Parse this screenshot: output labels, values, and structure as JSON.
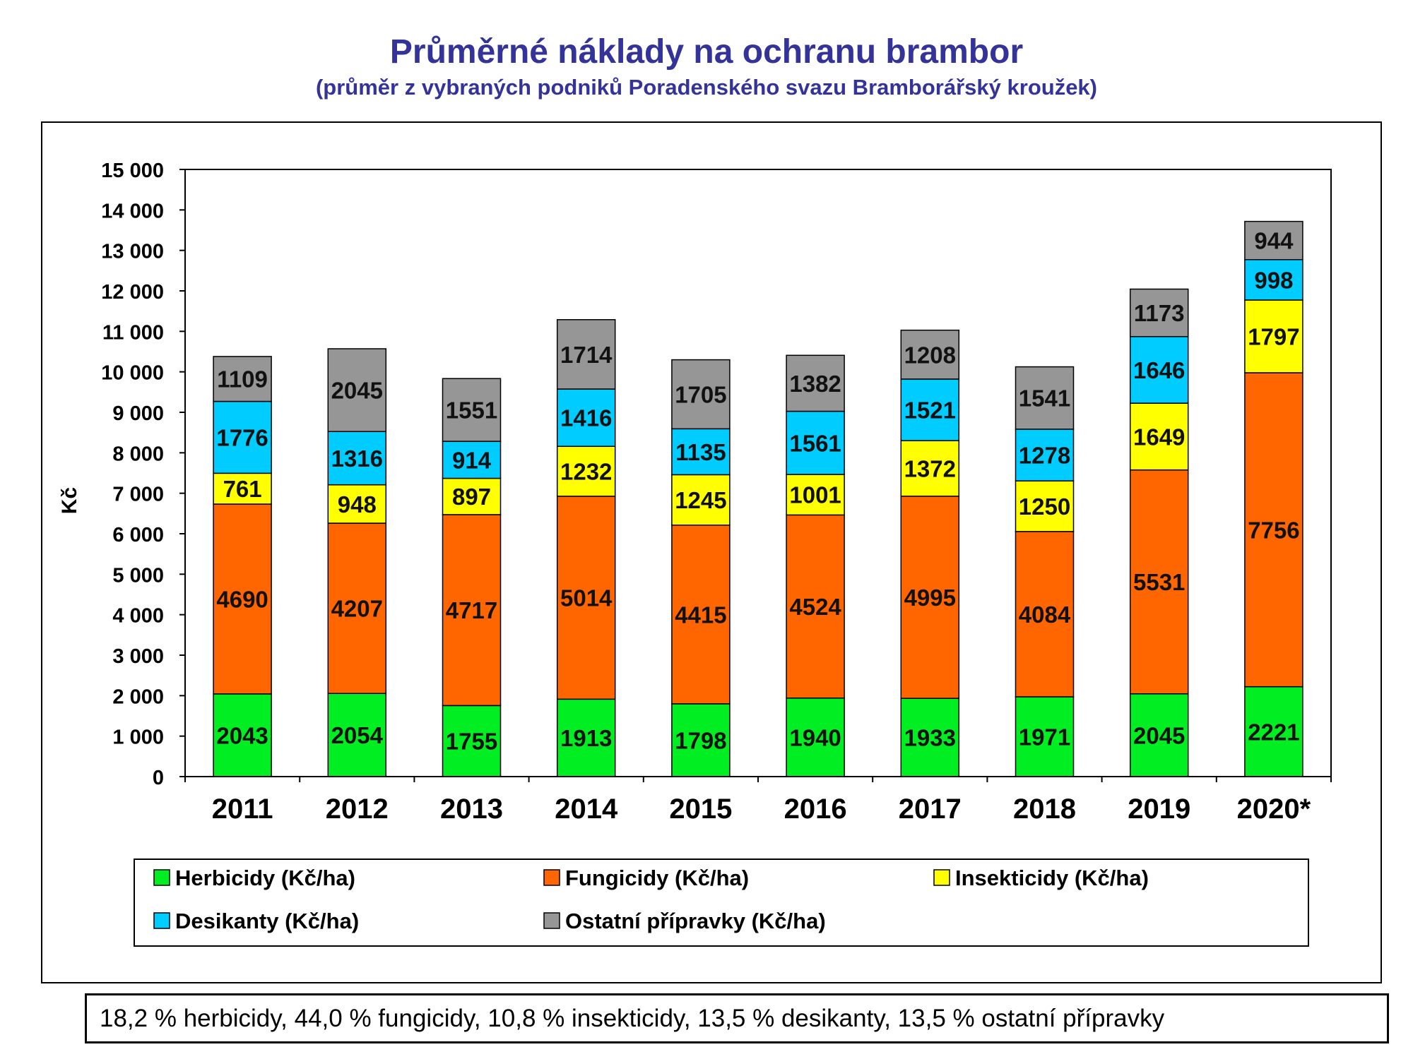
{
  "header": {
    "title": "Průměrné náklady na ochranu brambor",
    "subtitle": "(průměr z vybraných podniků Poradenského svazu Bramborářský kroužek)"
  },
  "summary": "18,2 % herbicidy, 44,0 % fungicidy, 10,8 % insekticidy, 13,5 % desikanty, 13,5 % ostatní přípravky",
  "chart_data": {
    "type": "bar",
    "stacked": true,
    "title": "",
    "xlabel": "",
    "ylabel": "Kč",
    "ylim": [
      0,
      15000
    ],
    "yticks": [
      0,
      1000,
      2000,
      3000,
      4000,
      5000,
      6000,
      7000,
      8000,
      9000,
      10000,
      11000,
      12000,
      13000,
      14000,
      15000
    ],
    "ytick_labels": [
      "0",
      "1 000",
      "2 000",
      "3 000",
      "4 000",
      "5 000",
      "6 000",
      "7 000",
      "8 000",
      "9 000",
      "10 000",
      "11 000",
      "12 000",
      "13 000",
      "14 000",
      "15 000"
    ],
    "grid": false,
    "legend_position": "bottom",
    "categories": [
      "2011",
      "2012",
      "2013",
      "2014",
      "2015",
      "2016",
      "2017",
      "2018",
      "2019",
      "2020*"
    ],
    "series": [
      {
        "name": "Herbicidy (Kč/ha)",
        "color": "#00ee22",
        "values": [
          2043,
          2054,
          1755,
          1913,
          1798,
          1940,
          1933,
          1971,
          2045,
          2221
        ]
      },
      {
        "name": "Fungicidy (Kč/ha)",
        "color": "#ff6600",
        "values": [
          4690,
          4207,
          4717,
          5014,
          4415,
          4524,
          4995,
          4084,
          5531,
          7756
        ]
      },
      {
        "name": "Insekticidy (Kč/ha)",
        "color": "#ffff00",
        "values": [
          761,
          948,
          897,
          1232,
          1245,
          1001,
          1372,
          1250,
          1649,
          1797
        ]
      },
      {
        "name": "Desikanty (Kč/ha)",
        "color": "#00ccff",
        "values": [
          1776,
          1316,
          914,
          1416,
          1135,
          1561,
          1521,
          1278,
          1646,
          998
        ]
      },
      {
        "name": "Ostatní přípravky (Kč/ha)",
        "color": "#969696",
        "values": [
          1109,
          2045,
          1551,
          1714,
          1705,
          1382,
          1208,
          1541,
          1173,
          944
        ]
      }
    ]
  }
}
